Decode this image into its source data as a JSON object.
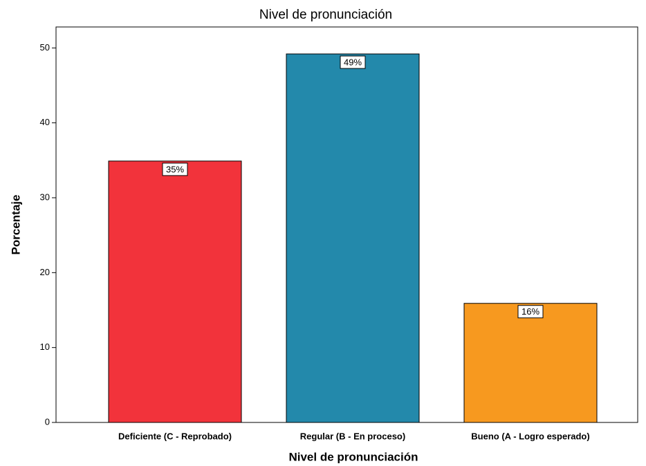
{
  "chart_data": {
    "type": "bar",
    "title": "Nivel de pronunciación",
    "x_label": "Nivel de pronunciación",
    "y_label": "Porcentaje",
    "categories": [
      "Deficiente (C - Reprobado)",
      "Regular (B - En proceso)",
      "Bueno (A - Logro esperado)"
    ],
    "values": [
      34.9,
      49.2,
      15.9
    ],
    "value_labels": [
      "35%",
      "49%",
      "16%"
    ],
    "colors": [
      "#f2333b",
      "#2389ab",
      "#f7991f"
    ],
    "ylim": [
      0,
      52.8
    ],
    "yticks": [
      0,
      10,
      20,
      30,
      40,
      50
    ],
    "grid": false
  }
}
